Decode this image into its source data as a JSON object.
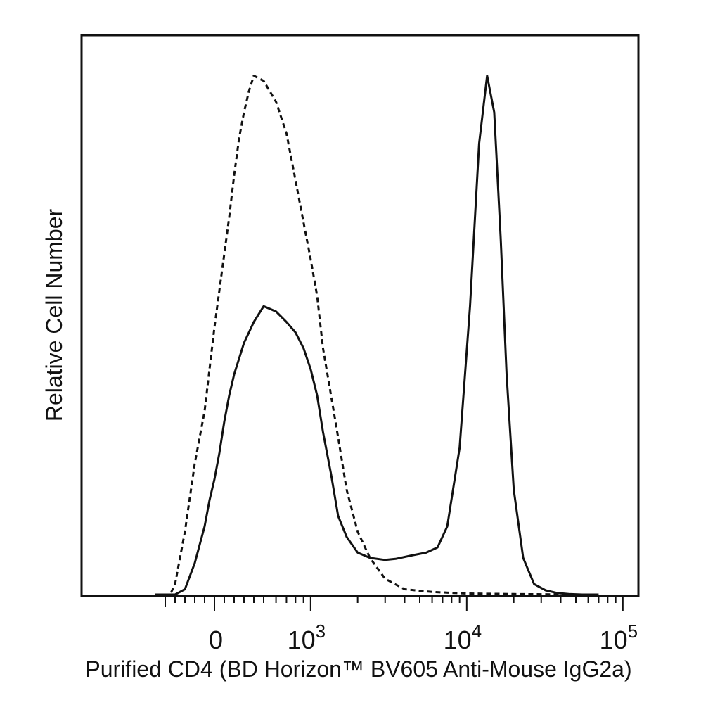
{
  "chart_data": {
    "type": "line",
    "title": "",
    "xlabel": "Purified CD4 (BD Horizon™ BV605 Anti-Mouse IgG2a)",
    "ylabel": "Relative Cell Number",
    "x_scale": "biexponential",
    "xlim": [
      -600,
      220000
    ],
    "ylim": [
      0,
      1
    ],
    "grid": false,
    "legend": "none",
    "x_tick_labels": [
      {
        "value": 0,
        "base": "0",
        "exp": ""
      },
      {
        "value": 1000,
        "base": "10",
        "exp": "3"
      },
      {
        "value": 10000,
        "base": "10",
        "exp": "4"
      },
      {
        "value": 100000,
        "base": "10",
        "exp": "5"
      }
    ],
    "series": [
      {
        "style": "dashed",
        "x": [
          -600,
          -450,
          -400,
          -300,
          -200,
          -100,
          -50,
          0,
          50,
          100,
          150,
          200,
          250,
          300,
          350,
          400,
          500,
          600,
          700,
          800,
          900,
          1000,
          1100,
          1200,
          1350,
          1500,
          1700,
          2000,
          2400,
          3000,
          4000,
          6000,
          10000,
          20000,
          50000
        ],
        "y": [
          0,
          0,
          0.02,
          0.12,
          0.25,
          0.35,
          0.43,
          0.51,
          0.58,
          0.65,
          0.72,
          0.8,
          0.87,
          0.92,
          0.96,
          0.99,
          0.98,
          0.94,
          0.88,
          0.79,
          0.71,
          0.64,
          0.57,
          0.47,
          0.38,
          0.3,
          0.2,
          0.12,
          0.07,
          0.03,
          0.01,
          0.005,
          0.002,
          0.001,
          0
        ]
      },
      {
        "style": "solid",
        "x": [
          -600,
          -400,
          -300,
          -200,
          -100,
          -50,
          0,
          50,
          100,
          150,
          200,
          300,
          400,
          500,
          600,
          700,
          800,
          900,
          1000,
          1100,
          1200,
          1350,
          1500,
          1700,
          2000,
          2400,
          3000,
          3500,
          4500,
          5500,
          6500,
          7500,
          9000,
          10500,
          12000,
          13500,
          15000,
          16500,
          18000,
          20000,
          23000,
          27000,
          32000,
          38000,
          45000,
          55000,
          70000
        ],
        "y": [
          0,
          0,
          0.01,
          0.06,
          0.13,
          0.18,
          0.22,
          0.27,
          0.33,
          0.38,
          0.42,
          0.48,
          0.52,
          0.55,
          0.54,
          0.52,
          0.5,
          0.47,
          0.43,
          0.38,
          0.31,
          0.23,
          0.15,
          0.11,
          0.08,
          0.07,
          0.066,
          0.068,
          0.075,
          0.08,
          0.09,
          0.13,
          0.28,
          0.55,
          0.86,
          0.99,
          0.92,
          0.68,
          0.42,
          0.2,
          0.07,
          0.02,
          0.008,
          0.003,
          0.001,
          0,
          0
        ]
      }
    ]
  }
}
